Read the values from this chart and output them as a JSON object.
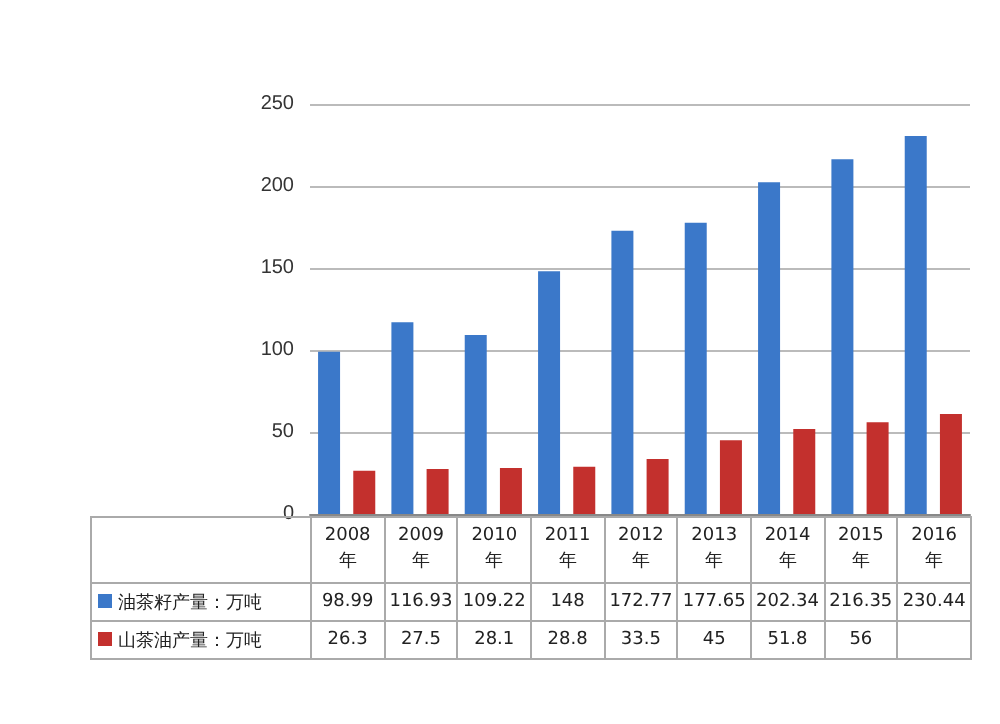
{
  "chart_data": {
    "type": "bar",
    "categories": [
      "2008年",
      "2009年",
      "2010年",
      "2011年",
      "2012年",
      "2013年",
      "2014年",
      "2015年",
      "2016年"
    ],
    "series": [
      {
        "name": "油茶籽产量：万吨",
        "color": "#3b78c9",
        "values": [
          98.99,
          116.93,
          109.22,
          148,
          172.77,
          177.65,
          202.34,
          216.35,
          230.44
        ],
        "value_labels": [
          "98.99",
          "116.93",
          "109.22",
          "148",
          "172.77",
          "177.65",
          "202.34",
          "216.35",
          "230.44"
        ]
      },
      {
        "name": "山茶油产量：万吨",
        "color": "#c3302d",
        "values": [
          26.3,
          27.5,
          28.1,
          28.8,
          33.5,
          45,
          51.8,
          56,
          61
        ],
        "value_labels": [
          "26.3",
          "27.5",
          "28.1",
          "28.8",
          "33.5",
          "45",
          "51.8",
          "56",
          null
        ]
      }
    ],
    "ylim": [
      0,
      250
    ],
    "yticks": [
      0,
      50,
      100,
      150,
      200,
      250
    ],
    "grid": "y",
    "legend": "bottom left"
  }
}
